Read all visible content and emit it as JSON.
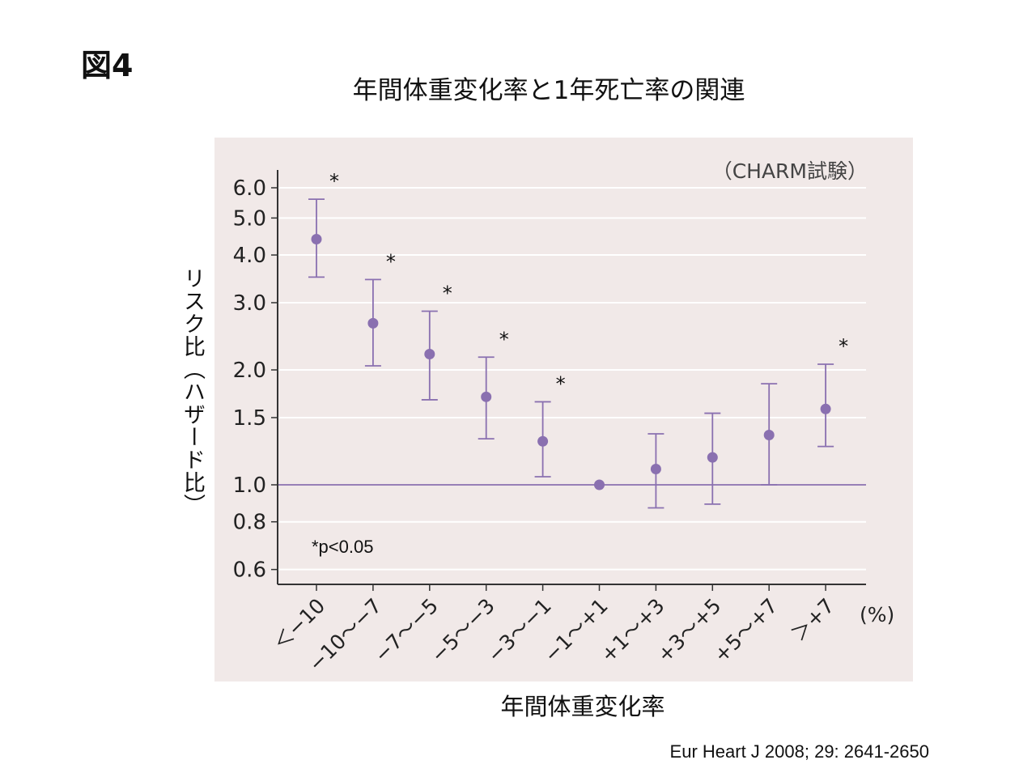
{
  "figure_label": "図4",
  "main_title": "年間体重変化率と1年死亡率の関連",
  "ylabel": "リスク比（ハザード比）",
  "xlabel": "年間体重変化率",
  "citation": "Eur Heart J 2008; 29: 2641-2650",
  "colors": {
    "accent": "#8a70b0",
    "panel_bg": "#f1e9e8",
    "grid": "#ffffff",
    "axis": "#333333"
  },
  "chart_data": {
    "type": "scatter",
    "annotation_top_right": "（CHARM試験）",
    "footnote": "*p<0.05",
    "x_unit": "(%)",
    "y_scale": "log",
    "ylim": [
      0.55,
      6.6
    ],
    "yticks": [
      6.0,
      5.0,
      4.0,
      3.0,
      2.0,
      1.5,
      1.0,
      0.8,
      0.6
    ],
    "ytick_labels": [
      "6.0",
      "5.0",
      "4.0",
      "3.0",
      "2.0",
      "1.5",
      "1.0",
      "0.8",
      "0.6"
    ],
    "reference_line": 1.0,
    "grid": true,
    "categories": [
      "＜−10",
      "−10〜−7",
      "−7〜−5",
      "−5〜−3",
      "−3〜−1",
      "−1〜+1",
      "+1〜+3",
      "+3〜+5",
      "+5〜+7",
      "＞+7"
    ],
    "values": [
      4.4,
      2.65,
      2.2,
      1.7,
      1.3,
      1.0,
      1.1,
      1.18,
      1.35,
      1.58
    ],
    "ci_lower": [
      3.5,
      2.05,
      1.67,
      1.32,
      1.05,
      null,
      0.87,
      0.89,
      1.0,
      1.26
    ],
    "ci_upper": [
      5.6,
      3.45,
      2.85,
      2.16,
      1.65,
      null,
      1.36,
      1.54,
      1.84,
      2.07
    ],
    "significant": [
      true,
      true,
      true,
      true,
      true,
      false,
      false,
      false,
      false,
      true
    ],
    "significance_mark": "*"
  }
}
